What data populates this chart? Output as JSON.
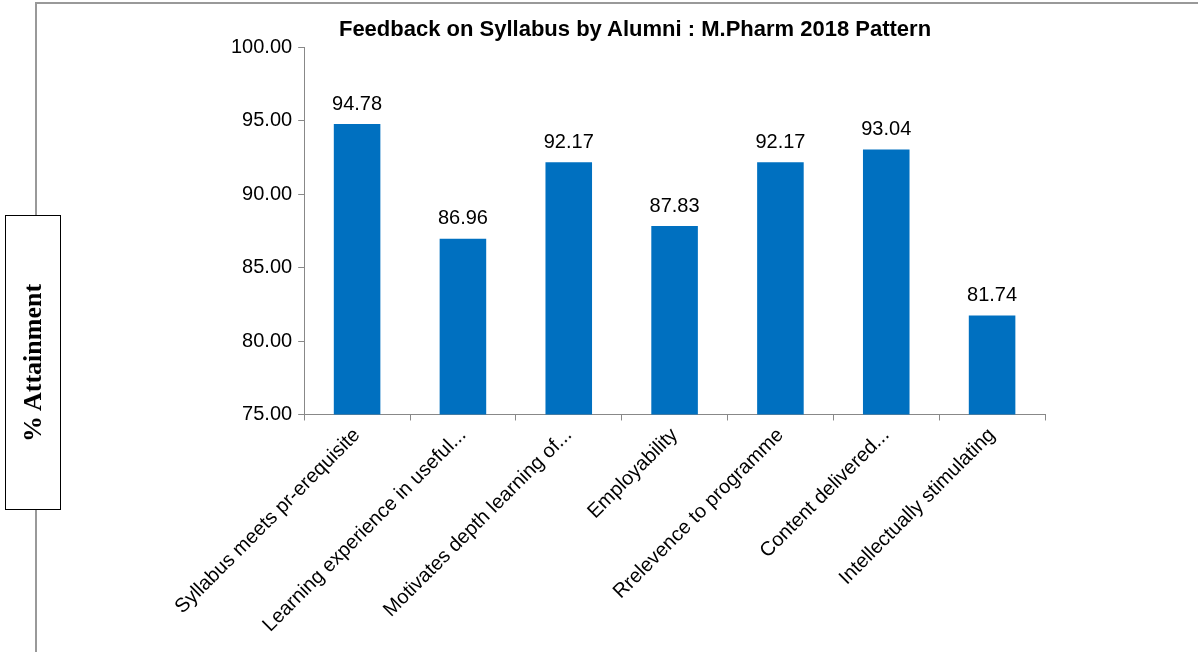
{
  "chart_data": {
    "type": "bar",
    "title": "Feedback on Syllabus by Alumni : M.Pharm 2018 Pattern",
    "ylabel": "% Attainment",
    "categories": [
      "Syllabus meets pr-erequisite",
      "Learning experience in useful...",
      "Motivates depth learning of...",
      "Employability",
      "Rrelevence to programme",
      "Content delivered...",
      "Intellectually stimulating"
    ],
    "values": [
      94.78,
      86.96,
      92.17,
      87.83,
      92.17,
      93.04,
      81.74
    ],
    "color": "#0070c0",
    "ylim": [
      75,
      100
    ],
    "yticks": [
      {
        "value": 75,
        "label": "75.00"
      },
      {
        "value": 80,
        "label": "80.00"
      },
      {
        "value": 85,
        "label": "85.00"
      },
      {
        "value": 90,
        "label": "90.00"
      },
      {
        "value": 95,
        "label": "95.00"
      },
      {
        "value": 100,
        "label": "100.00"
      }
    ],
    "data_labels": true,
    "grid": false,
    "legend": false
  }
}
